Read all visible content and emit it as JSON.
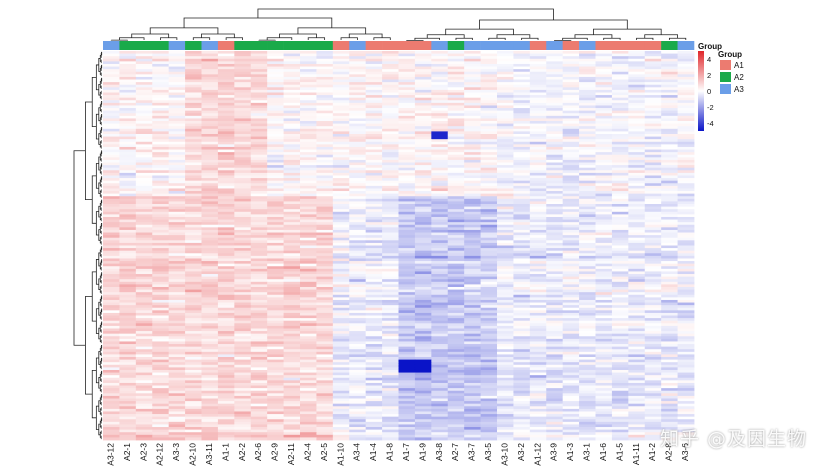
{
  "chart_data": {
    "type": "heatmap",
    "title": "",
    "columns": [
      "A3-12",
      "A2-1",
      "A2-3",
      "A2-12",
      "A3-3",
      "A2-10",
      "A3-11",
      "A1-1",
      "A2-2",
      "A2-6",
      "A2-9",
      "A2-11",
      "A2-4",
      "A2-5",
      "A1-10",
      "A3-4",
      "A1-4",
      "A1-8",
      "A1-7",
      "A1-9",
      "A3-8",
      "A2-7",
      "A3-7",
      "A3-5",
      "A3-10",
      "A3-2",
      "A1-12",
      "A3-9",
      "A1-3",
      "A3-1",
      "A1-6",
      "A1-5",
      "A1-11",
      "A1-2",
      "A2-8",
      "A3-6"
    ],
    "groups": [
      "A3",
      "A2",
      "A2",
      "A2",
      "A3",
      "A2",
      "A3",
      "A1",
      "A2",
      "A2",
      "A2",
      "A2",
      "A2",
      "A2",
      "A1",
      "A3",
      "A1",
      "A1",
      "A1",
      "A1",
      "A3",
      "A2",
      "A3",
      "A3",
      "A3",
      "A3",
      "A1",
      "A3",
      "A1",
      "A3",
      "A1",
      "A1",
      "A1",
      "A1",
      "A2",
      "A3"
    ],
    "n_rows": 150,
    "color_scale": {
      "min": -5,
      "max": 5,
      "ticks": [
        4,
        2,
        0,
        -2,
        -4
      ],
      "low": "#0a14c8",
      "mid": "#ffffff",
      "high": "#e0262a"
    },
    "group_annotation": {
      "title": "Group",
      "bar_label": "Group",
      "legend": [
        {
          "name": "A1",
          "color": "#ec7b70"
        },
        {
          "name": "A2",
          "color": "#1aaa4a"
        },
        {
          "name": "A3",
          "color": "#6b9ee8"
        }
      ]
    },
    "row_dendrogram": true,
    "column_dendrogram": true
  },
  "watermark": "知乎 @及因生物"
}
